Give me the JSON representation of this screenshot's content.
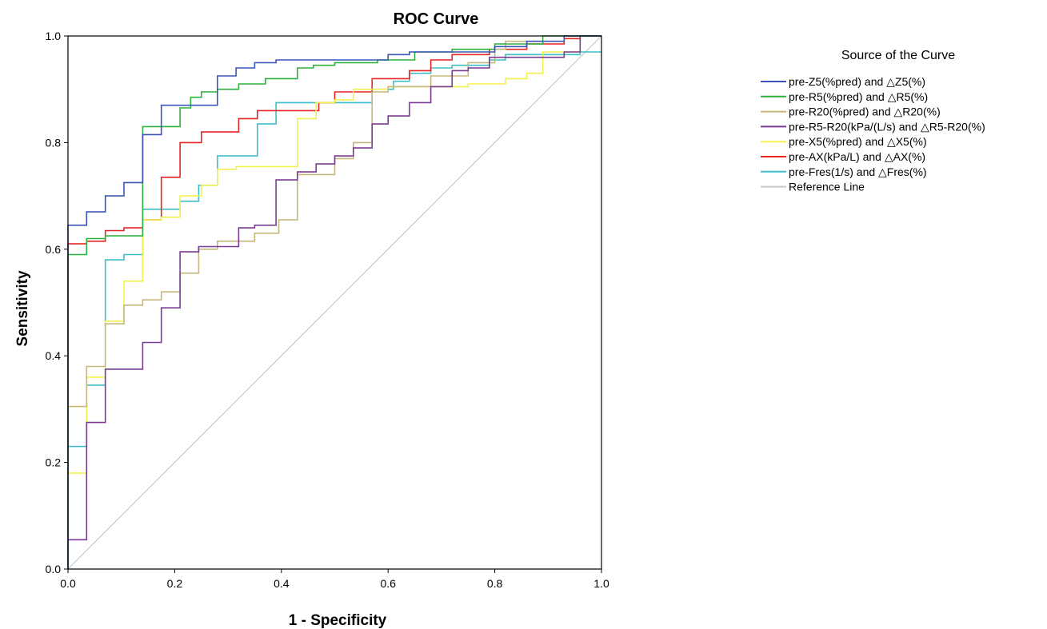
{
  "chart_data": {
    "type": "line",
    "title": "ROC Curve",
    "xlabel": "1 - Specificity",
    "ylabel": "Sensitivity",
    "xlim": [
      0,
      1
    ],
    "ylim": [
      0,
      1
    ],
    "xticks": [
      "0.0",
      "0.2",
      "0.4",
      "0.6",
      "0.8",
      "1.0"
    ],
    "yticks": [
      "0.0",
      "0.2",
      "0.4",
      "0.6",
      "0.8",
      "1.0"
    ],
    "legend_title": "Source of the Curve",
    "legend_position": "right",
    "grid": false,
    "series": [
      {
        "name": "pre-Z5(%pred) and △Z5(%)",
        "color": "#3a55b8",
        "points": [
          [
            0,
            0
          ],
          [
            0,
            0.645
          ],
          [
            0.035,
            0.645
          ],
          [
            0.035,
            0.67
          ],
          [
            0.07,
            0.67
          ],
          [
            0.07,
            0.7
          ],
          [
            0.105,
            0.7
          ],
          [
            0.105,
            0.725
          ],
          [
            0.14,
            0.725
          ],
          [
            0.14,
            0.815
          ],
          [
            0.175,
            0.815
          ],
          [
            0.175,
            0.87
          ],
          [
            0.28,
            0.87
          ],
          [
            0.28,
            0.925
          ],
          [
            0.315,
            0.925
          ],
          [
            0.315,
            0.94
          ],
          [
            0.35,
            0.94
          ],
          [
            0.35,
            0.95
          ],
          [
            0.39,
            0.95
          ],
          [
            0.39,
            0.955
          ],
          [
            0.6,
            0.955
          ],
          [
            0.6,
            0.965
          ],
          [
            0.64,
            0.965
          ],
          [
            0.64,
            0.97
          ],
          [
            0.8,
            0.97
          ],
          [
            0.8,
            0.98
          ],
          [
            0.86,
            0.98
          ],
          [
            0.86,
            0.99
          ],
          [
            0.93,
            0.99
          ],
          [
            0.93,
            1.0
          ],
          [
            1.0,
            1.0
          ]
        ]
      },
      {
        "name": "pre-R5(%pred) and △R5(%)",
        "color": "#2eb13b",
        "points": [
          [
            0,
            0
          ],
          [
            0,
            0.59
          ],
          [
            0.035,
            0.59
          ],
          [
            0.035,
            0.62
          ],
          [
            0.07,
            0.62
          ],
          [
            0.07,
            0.625
          ],
          [
            0.14,
            0.625
          ],
          [
            0.14,
            0.83
          ],
          [
            0.21,
            0.83
          ],
          [
            0.21,
            0.865
          ],
          [
            0.23,
            0.865
          ],
          [
            0.23,
            0.885
          ],
          [
            0.25,
            0.885
          ],
          [
            0.25,
            0.895
          ],
          [
            0.28,
            0.895
          ],
          [
            0.28,
            0.9
          ],
          [
            0.32,
            0.9
          ],
          [
            0.32,
            0.91
          ],
          [
            0.37,
            0.91
          ],
          [
            0.37,
            0.92
          ],
          [
            0.43,
            0.92
          ],
          [
            0.43,
            0.94
          ],
          [
            0.46,
            0.94
          ],
          [
            0.46,
            0.945
          ],
          [
            0.5,
            0.945
          ],
          [
            0.5,
            0.95
          ],
          [
            0.58,
            0.95
          ],
          [
            0.58,
            0.955
          ],
          [
            0.65,
            0.955
          ],
          [
            0.65,
            0.97
          ],
          [
            0.72,
            0.97
          ],
          [
            0.72,
            0.975
          ],
          [
            0.8,
            0.975
          ],
          [
            0.8,
            0.985
          ],
          [
            0.89,
            0.985
          ],
          [
            0.89,
            1.0
          ],
          [
            1.0,
            1.0
          ]
        ]
      },
      {
        "name": "pre-R20(%pred) and △R20(%)",
        "color": "#c5b87a",
        "points": [
          [
            0,
            0
          ],
          [
            0,
            0.305
          ],
          [
            0.035,
            0.305
          ],
          [
            0.035,
            0.38
          ],
          [
            0.07,
            0.38
          ],
          [
            0.07,
            0.46
          ],
          [
            0.105,
            0.46
          ],
          [
            0.105,
            0.495
          ],
          [
            0.14,
            0.495
          ],
          [
            0.14,
            0.505
          ],
          [
            0.175,
            0.505
          ],
          [
            0.175,
            0.52
          ],
          [
            0.21,
            0.52
          ],
          [
            0.21,
            0.555
          ],
          [
            0.245,
            0.555
          ],
          [
            0.245,
            0.6
          ],
          [
            0.28,
            0.6
          ],
          [
            0.28,
            0.615
          ],
          [
            0.35,
            0.615
          ],
          [
            0.35,
            0.63
          ],
          [
            0.395,
            0.63
          ],
          [
            0.395,
            0.655
          ],
          [
            0.43,
            0.655
          ],
          [
            0.43,
            0.74
          ],
          [
            0.5,
            0.74
          ],
          [
            0.5,
            0.77
          ],
          [
            0.535,
            0.77
          ],
          [
            0.535,
            0.8
          ],
          [
            0.57,
            0.8
          ],
          [
            0.57,
            0.895
          ],
          [
            0.6,
            0.895
          ],
          [
            0.6,
            0.905
          ],
          [
            0.68,
            0.905
          ],
          [
            0.68,
            0.925
          ],
          [
            0.75,
            0.925
          ],
          [
            0.75,
            0.95
          ],
          [
            0.8,
            0.95
          ],
          [
            0.8,
            0.975
          ],
          [
            0.82,
            0.975
          ],
          [
            0.82,
            0.99
          ],
          [
            0.93,
            0.99
          ],
          [
            0.93,
            1.0
          ],
          [
            1.0,
            1.0
          ]
        ]
      },
      {
        "name": "pre-R5-R20(kPa/(L/s) and △R5-R20(%)",
        "color": "#7b3a93",
        "points": [
          [
            0,
            0
          ],
          [
            0,
            0.055
          ],
          [
            0.035,
            0.055
          ],
          [
            0.035,
            0.275
          ],
          [
            0.07,
            0.275
          ],
          [
            0.07,
            0.375
          ],
          [
            0.14,
            0.375
          ],
          [
            0.14,
            0.425
          ],
          [
            0.175,
            0.425
          ],
          [
            0.175,
            0.49
          ],
          [
            0.21,
            0.49
          ],
          [
            0.21,
            0.595
          ],
          [
            0.245,
            0.595
          ],
          [
            0.245,
            0.605
          ],
          [
            0.32,
            0.605
          ],
          [
            0.32,
            0.64
          ],
          [
            0.35,
            0.64
          ],
          [
            0.35,
            0.645
          ],
          [
            0.39,
            0.645
          ],
          [
            0.39,
            0.73
          ],
          [
            0.43,
            0.73
          ],
          [
            0.43,
            0.745
          ],
          [
            0.465,
            0.745
          ],
          [
            0.465,
            0.76
          ],
          [
            0.5,
            0.76
          ],
          [
            0.5,
            0.775
          ],
          [
            0.535,
            0.775
          ],
          [
            0.535,
            0.79
          ],
          [
            0.57,
            0.79
          ],
          [
            0.57,
            0.835
          ],
          [
            0.6,
            0.835
          ],
          [
            0.6,
            0.85
          ],
          [
            0.64,
            0.85
          ],
          [
            0.64,
            0.875
          ],
          [
            0.68,
            0.875
          ],
          [
            0.68,
            0.905
          ],
          [
            0.72,
            0.905
          ],
          [
            0.72,
            0.935
          ],
          [
            0.75,
            0.935
          ],
          [
            0.75,
            0.94
          ],
          [
            0.79,
            0.94
          ],
          [
            0.79,
            0.96
          ],
          [
            0.93,
            0.96
          ],
          [
            0.93,
            0.97
          ],
          [
            0.96,
            0.97
          ],
          [
            0.96,
            1.0
          ],
          [
            1.0,
            1.0
          ]
        ]
      },
      {
        "name": "pre-X5(%pred) and △X5(%)",
        "color": "#f3f24c",
        "points": [
          [
            0,
            0
          ],
          [
            0,
            0.18
          ],
          [
            0.035,
            0.18
          ],
          [
            0.035,
            0.36
          ],
          [
            0.07,
            0.36
          ],
          [
            0.07,
            0.465
          ],
          [
            0.105,
            0.465
          ],
          [
            0.105,
            0.54
          ],
          [
            0.14,
            0.54
          ],
          [
            0.14,
            0.655
          ],
          [
            0.175,
            0.655
          ],
          [
            0.175,
            0.66
          ],
          [
            0.21,
            0.66
          ],
          [
            0.21,
            0.7
          ],
          [
            0.25,
            0.7
          ],
          [
            0.25,
            0.72
          ],
          [
            0.28,
            0.72
          ],
          [
            0.28,
            0.75
          ],
          [
            0.315,
            0.75
          ],
          [
            0.315,
            0.755
          ],
          [
            0.43,
            0.755
          ],
          [
            0.43,
            0.845
          ],
          [
            0.465,
            0.845
          ],
          [
            0.465,
            0.875
          ],
          [
            0.5,
            0.875
          ],
          [
            0.5,
            0.88
          ],
          [
            0.535,
            0.88
          ],
          [
            0.535,
            0.9
          ],
          [
            0.6,
            0.9
          ],
          [
            0.6,
            0.905
          ],
          [
            0.75,
            0.905
          ],
          [
            0.75,
            0.91
          ],
          [
            0.82,
            0.91
          ],
          [
            0.82,
            0.92
          ],
          [
            0.86,
            0.92
          ],
          [
            0.86,
            0.93
          ],
          [
            0.89,
            0.93
          ],
          [
            0.89,
            0.97
          ],
          [
            0.96,
            0.97
          ],
          [
            0.96,
            1.0
          ],
          [
            1.0,
            1.0
          ]
        ]
      },
      {
        "name": "pre-AX(kPa/L) and △AX(%)",
        "color": "#e82424",
        "points": [
          [
            0,
            0
          ],
          [
            0,
            0.61
          ],
          [
            0.035,
            0.61
          ],
          [
            0.035,
            0.615
          ],
          [
            0.07,
            0.615
          ],
          [
            0.07,
            0.635
          ],
          [
            0.105,
            0.635
          ],
          [
            0.105,
            0.64
          ],
          [
            0.14,
            0.64
          ],
          [
            0.14,
            0.655
          ],
          [
            0.175,
            0.655
          ],
          [
            0.175,
            0.735
          ],
          [
            0.21,
            0.735
          ],
          [
            0.21,
            0.8
          ],
          [
            0.25,
            0.8
          ],
          [
            0.25,
            0.82
          ],
          [
            0.32,
            0.82
          ],
          [
            0.32,
            0.845
          ],
          [
            0.355,
            0.845
          ],
          [
            0.355,
            0.86
          ],
          [
            0.47,
            0.86
          ],
          [
            0.47,
            0.875
          ],
          [
            0.5,
            0.875
          ],
          [
            0.5,
            0.895
          ],
          [
            0.57,
            0.895
          ],
          [
            0.57,
            0.92
          ],
          [
            0.64,
            0.92
          ],
          [
            0.64,
            0.935
          ],
          [
            0.68,
            0.935
          ],
          [
            0.68,
            0.955
          ],
          [
            0.72,
            0.955
          ],
          [
            0.72,
            0.965
          ],
          [
            0.79,
            0.965
          ],
          [
            0.79,
            0.975
          ],
          [
            0.86,
            0.975
          ],
          [
            0.86,
            0.985
          ],
          [
            0.93,
            0.985
          ],
          [
            0.93,
            0.995
          ],
          [
            0.96,
            0.995
          ],
          [
            0.96,
            1.0
          ],
          [
            1.0,
            1.0
          ]
        ]
      },
      {
        "name": "pre-Fres(1/s) and △Fres(%)",
        "color": "#3bbec8",
        "points": [
          [
            0,
            0
          ],
          [
            0,
            0.23
          ],
          [
            0.035,
            0.23
          ],
          [
            0.035,
            0.345
          ],
          [
            0.07,
            0.345
          ],
          [
            0.07,
            0.58
          ],
          [
            0.105,
            0.58
          ],
          [
            0.105,
            0.59
          ],
          [
            0.14,
            0.59
          ],
          [
            0.14,
            0.675
          ],
          [
            0.21,
            0.675
          ],
          [
            0.21,
            0.69
          ],
          [
            0.245,
            0.69
          ],
          [
            0.245,
            0.72
          ],
          [
            0.28,
            0.72
          ],
          [
            0.28,
            0.775
          ],
          [
            0.355,
            0.775
          ],
          [
            0.355,
            0.835
          ],
          [
            0.39,
            0.835
          ],
          [
            0.39,
            0.875
          ],
          [
            0.57,
            0.875
          ],
          [
            0.57,
            0.9
          ],
          [
            0.61,
            0.9
          ],
          [
            0.61,
            0.915
          ],
          [
            0.64,
            0.915
          ],
          [
            0.64,
            0.93
          ],
          [
            0.68,
            0.93
          ],
          [
            0.68,
            0.94
          ],
          [
            0.72,
            0.94
          ],
          [
            0.72,
            0.945
          ],
          [
            0.79,
            0.945
          ],
          [
            0.79,
            0.955
          ],
          [
            0.82,
            0.955
          ],
          [
            0.82,
            0.965
          ],
          [
            0.96,
            0.965
          ],
          [
            0.96,
            0.97
          ],
          [
            1.0,
            0.97
          ]
        ]
      },
      {
        "name": "Reference Line",
        "color": "#c8c8c8",
        "points": [
          [
            0,
            0
          ],
          [
            1,
            1
          ]
        ]
      }
    ]
  }
}
